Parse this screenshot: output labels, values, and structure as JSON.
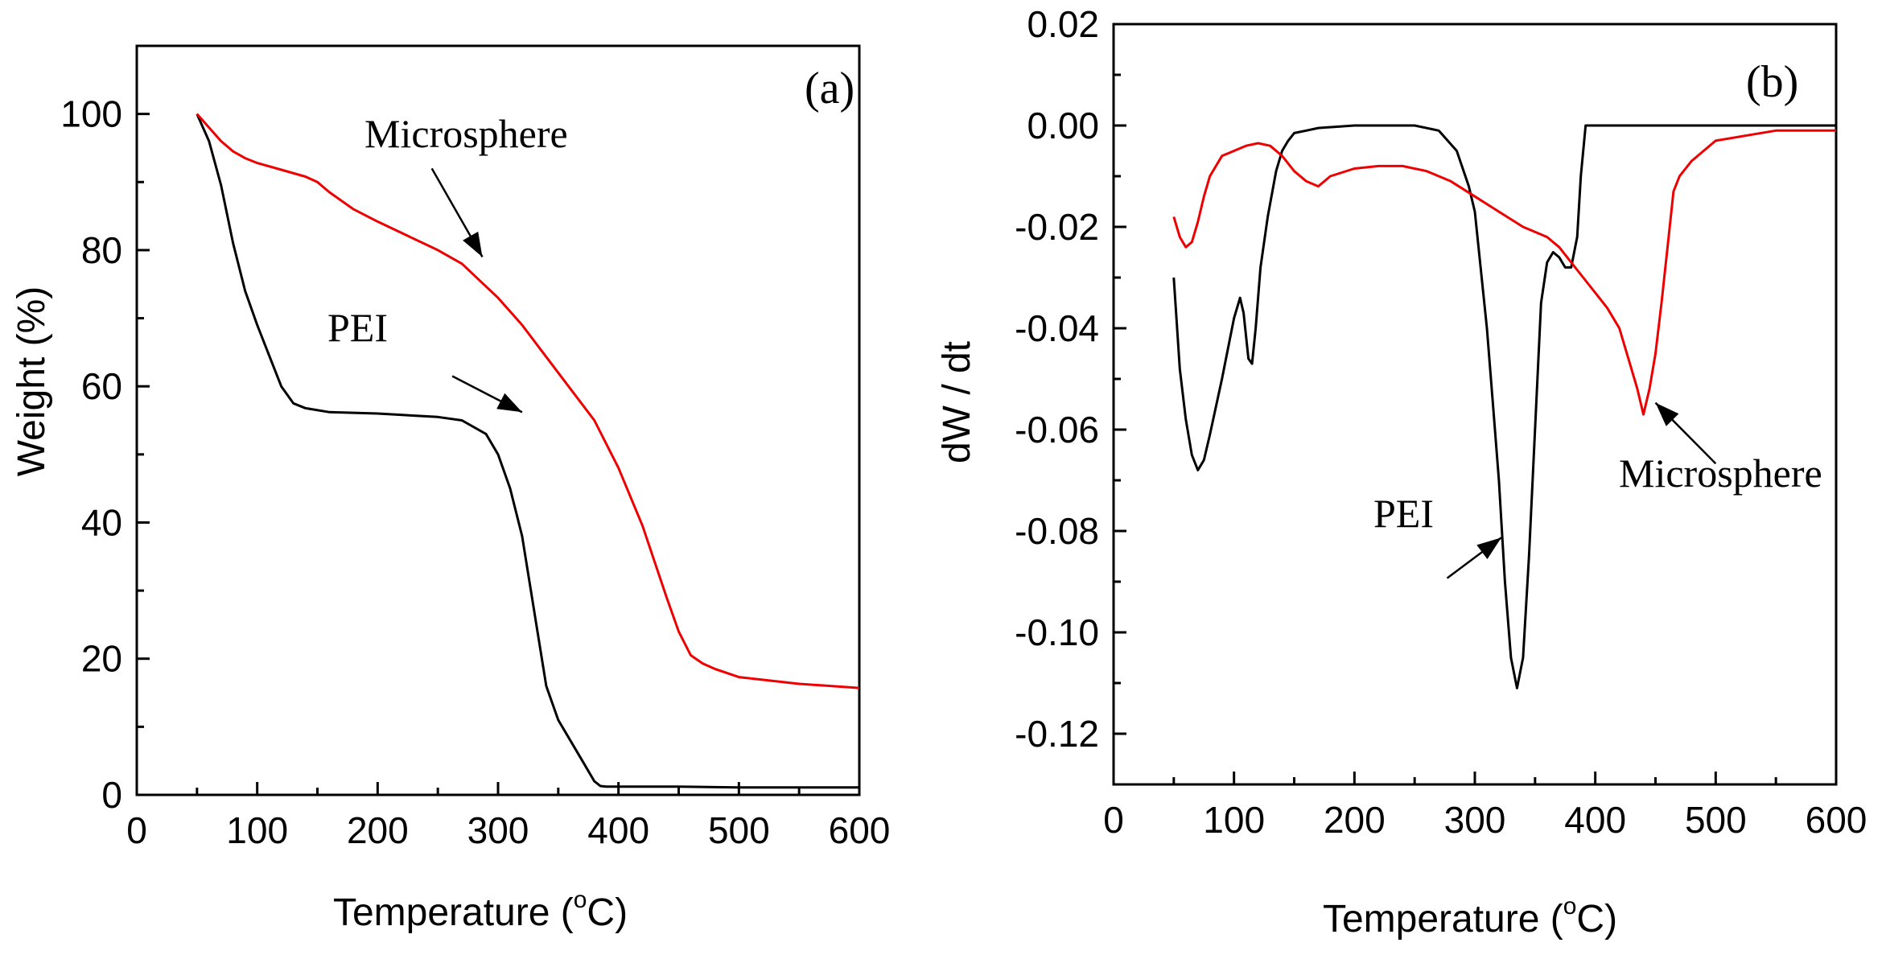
{
  "colors": {
    "pei": "#000000",
    "microsphere": "#ee0000"
  },
  "chart_data": [
    {
      "id": "a",
      "type": "line",
      "panel_label": "(a)",
      "xlabel_main": "Temperature (",
      "xlabel_sup": "o",
      "xlabel_end": "C)",
      "ylabel": "Weight (%)",
      "xlim": [
        0,
        600
      ],
      "ylim": [
        0,
        110
      ],
      "xticks": [
        0,
        100,
        200,
        300,
        400,
        500,
        600
      ],
      "xtick_labels": [
        "0",
        "100",
        "200",
        "300",
        "400",
        "500",
        "600"
      ],
      "yticks": [
        0,
        20,
        40,
        60,
        80,
        100
      ],
      "ytick_labels": [
        "0",
        "20",
        "40",
        "60",
        "80",
        "100"
      ],
      "series": [
        {
          "name": "PEI",
          "color_key": "pei",
          "x": [
            50,
            60,
            70,
            80,
            90,
            100,
            110,
            120,
            130,
            140,
            160,
            200,
            250,
            270,
            290,
            300,
            310,
            320,
            330,
            340,
            350,
            360,
            370,
            380,
            385,
            390,
            400,
            450,
            500,
            550,
            600
          ],
          "y": [
            100,
            96,
            89.5,
            81,
            74,
            69,
            64.5,
            60,
            57.5,
            56.8,
            56.2,
            56,
            55.5,
            55,
            53,
            50,
            45,
            38,
            27,
            16,
            11,
            8,
            5,
            2,
            1.3,
            1.2,
            1.2,
            1.2,
            1.1,
            1.1,
            1.1
          ]
        },
        {
          "name": "Microsphere",
          "color_key": "microsphere",
          "x": [
            50,
            60,
            70,
            80,
            90,
            100,
            120,
            140,
            150,
            160,
            180,
            200,
            250,
            270,
            300,
            320,
            350,
            380,
            400,
            420,
            440,
            450,
            460,
            470,
            480,
            500,
            550,
            600
          ],
          "y": [
            100,
            98,
            96,
            94.5,
            93.5,
            92.8,
            91.8,
            90.8,
            90,
            88.5,
            86,
            84.2,
            80,
            78,
            73,
            69,
            62,
            55,
            48,
            39.5,
            29,
            24,
            20.5,
            19.3,
            18.5,
            17.3,
            16.3,
            15.7
          ]
        }
      ],
      "annotations": [
        {
          "id": "pei-label",
          "text": "PEI",
          "arrow_from": [
            262,
            61.5
          ],
          "arrow_to": [
            320,
            56.2
          ]
        },
        {
          "id": "microsphere-label",
          "text": "Microsphere",
          "arrow_from": [
            245,
            92
          ],
          "arrow_to": [
            287,
            79
          ]
        }
      ]
    },
    {
      "id": "b",
      "type": "line",
      "panel_label": "(b)",
      "xlabel_main": "Temperature (",
      "xlabel_sup": "o",
      "xlabel_end": "C)",
      "ylabel": "dW / dt",
      "xlim": [
        0,
        600
      ],
      "ylim": [
        -0.13,
        0.02
      ],
      "xticks": [
        0,
        100,
        200,
        300,
        400,
        500,
        600
      ],
      "xtick_labels": [
        "0",
        "100",
        "200",
        "300",
        "400",
        "500",
        "600"
      ],
      "yticks": [
        0.02,
        0.0,
        -0.02,
        -0.04,
        -0.06,
        -0.08,
        -0.1,
        -0.12
      ],
      "ytick_labels": [
        "0.02",
        "0.00",
        "-0.02",
        "-0.04",
        "-0.06",
        "-0.08",
        "-0.10",
        "-0.12"
      ],
      "series": [
        {
          "name": "PEI",
          "color_key": "pei",
          "x": [
            50,
            55,
            60,
            65,
            70,
            75,
            80,
            90,
            100,
            105,
            108,
            112,
            115,
            118,
            122,
            128,
            135,
            140,
            145,
            150,
            160,
            170,
            200,
            250,
            270,
            285,
            295,
            300,
            310,
            315,
            320,
            325,
            330,
            335,
            340,
            345,
            350,
            355,
            360,
            365,
            370,
            375,
            380,
            385,
            388,
            392,
            400,
            450,
            500,
            550,
            600
          ],
          "y": [
            -0.03,
            -0.048,
            -0.058,
            -0.065,
            -0.068,
            -0.066,
            -0.061,
            -0.05,
            -0.038,
            -0.034,
            -0.037,
            -0.046,
            -0.047,
            -0.04,
            -0.028,
            -0.018,
            -0.009,
            -0.005,
            -0.003,
            -0.0015,
            -0.001,
            -0.0005,
            0.0,
            0.0,
            -0.001,
            -0.005,
            -0.012,
            -0.017,
            -0.04,
            -0.055,
            -0.07,
            -0.09,
            -0.105,
            -0.111,
            -0.105,
            -0.085,
            -0.06,
            -0.035,
            -0.027,
            -0.025,
            -0.026,
            -0.028,
            -0.028,
            -0.022,
            -0.01,
            0.0,
            0.0,
            0.0,
            0.0,
            0.0,
            0.0
          ]
        },
        {
          "name": "Microsphere",
          "color_key": "microsphere",
          "x": [
            50,
            55,
            60,
            65,
            70,
            75,
            80,
            90,
            100,
            110,
            120,
            130,
            140,
            150,
            160,
            170,
            180,
            200,
            220,
            240,
            260,
            280,
            300,
            320,
            340,
            360,
            370,
            380,
            390,
            400,
            410,
            420,
            425,
            430,
            435,
            440,
            445,
            450,
            455,
            460,
            465,
            470,
            480,
            500,
            550,
            600
          ],
          "y": [
            -0.018,
            -0.022,
            -0.024,
            -0.023,
            -0.019,
            -0.014,
            -0.01,
            -0.006,
            -0.005,
            -0.004,
            -0.0035,
            -0.004,
            -0.006,
            -0.009,
            -0.011,
            -0.012,
            -0.01,
            -0.0085,
            -0.008,
            -0.008,
            -0.009,
            -0.011,
            -0.014,
            -0.017,
            -0.02,
            -0.022,
            -0.024,
            -0.027,
            -0.03,
            -0.033,
            -0.036,
            -0.04,
            -0.044,
            -0.048,
            -0.052,
            -0.057,
            -0.052,
            -0.045,
            -0.035,
            -0.024,
            -0.013,
            -0.01,
            -0.007,
            -0.003,
            -0.001,
            -0.001
          ]
        }
      ],
      "annotations": [
        {
          "id": "pei-label",
          "text": "PEI",
          "arrow_from": [
            277,
            -0.0893
          ],
          "arrow_to": [
            322,
            -0.0813
          ]
        },
        {
          "id": "microsphere-label",
          "text": "Microsphere",
          "arrow_from": [
            500,
            -0.0667
          ],
          "arrow_to": [
            450,
            -0.0547
          ]
        }
      ]
    }
  ]
}
